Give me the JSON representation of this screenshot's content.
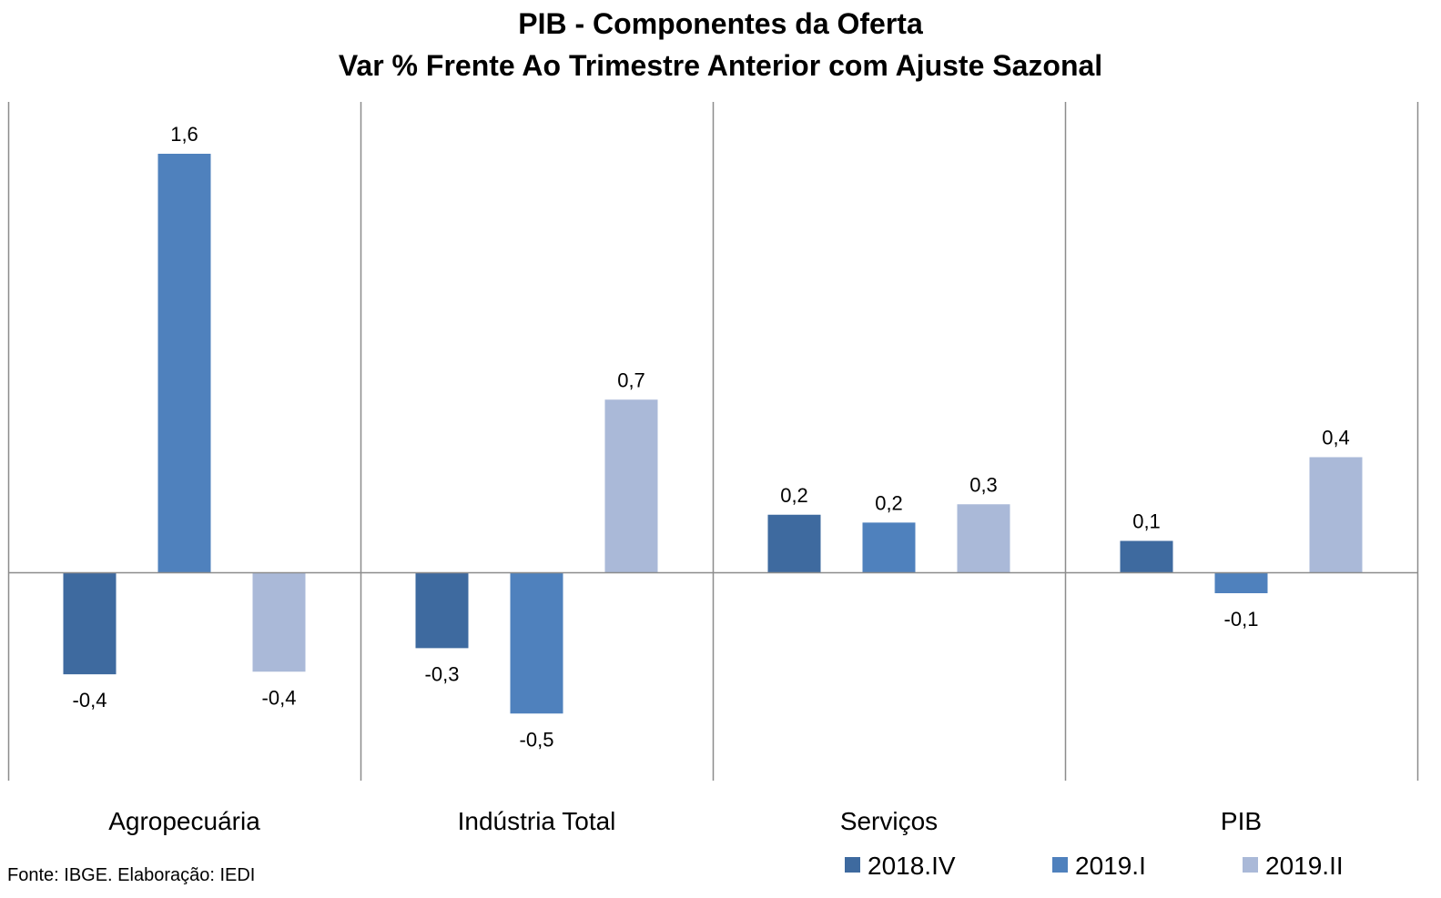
{
  "chart_data": {
    "type": "bar",
    "title": "PIB - Componentes da Oferta",
    "subtitle": "Var % Frente Ao Trimestre Anterior com Ajuste Sazonal",
    "categories": [
      "Agropecuária",
      "Indústria Total",
      "Serviços",
      "PIB"
    ],
    "series": [
      {
        "name": "2018.IV",
        "color": "#3e6a9f",
        "values": [
          -0.4,
          -0.3,
          0.2,
          0.1
        ],
        "labels": [
          "-0,4",
          "-0,3",
          "0,2",
          "0,1"
        ]
      },
      {
        "name": "2019.I",
        "color": "#4f81bd",
        "values": [
          1.6,
          -0.5,
          0.2,
          -0.1
        ],
        "labels": [
          "1,6",
          "-0,5",
          "0,2",
          "-0,1"
        ]
      },
      {
        "name": "2019.II",
        "color": "#aab9d8",
        "values": [
          -0.4,
          0.7,
          0.3,
          0.4
        ],
        "labels": [
          "-0,4",
          "0,7",
          "0,3",
          "0,4"
        ]
      }
    ],
    "plot_values_exact": [
      [
        -0.39,
        -0.29,
        0.22,
        0.12
      ],
      [
        1.6,
        -0.54,
        0.19,
        -0.08
      ],
      [
        -0.38,
        0.66,
        0.26,
        0.44
      ]
    ],
    "ylim": [
      -0.8,
      1.8
    ],
    "legend_position": "bottom-right",
    "grid": false
  },
  "source": "Fonte: IBGE. Elaboração: IEDI"
}
